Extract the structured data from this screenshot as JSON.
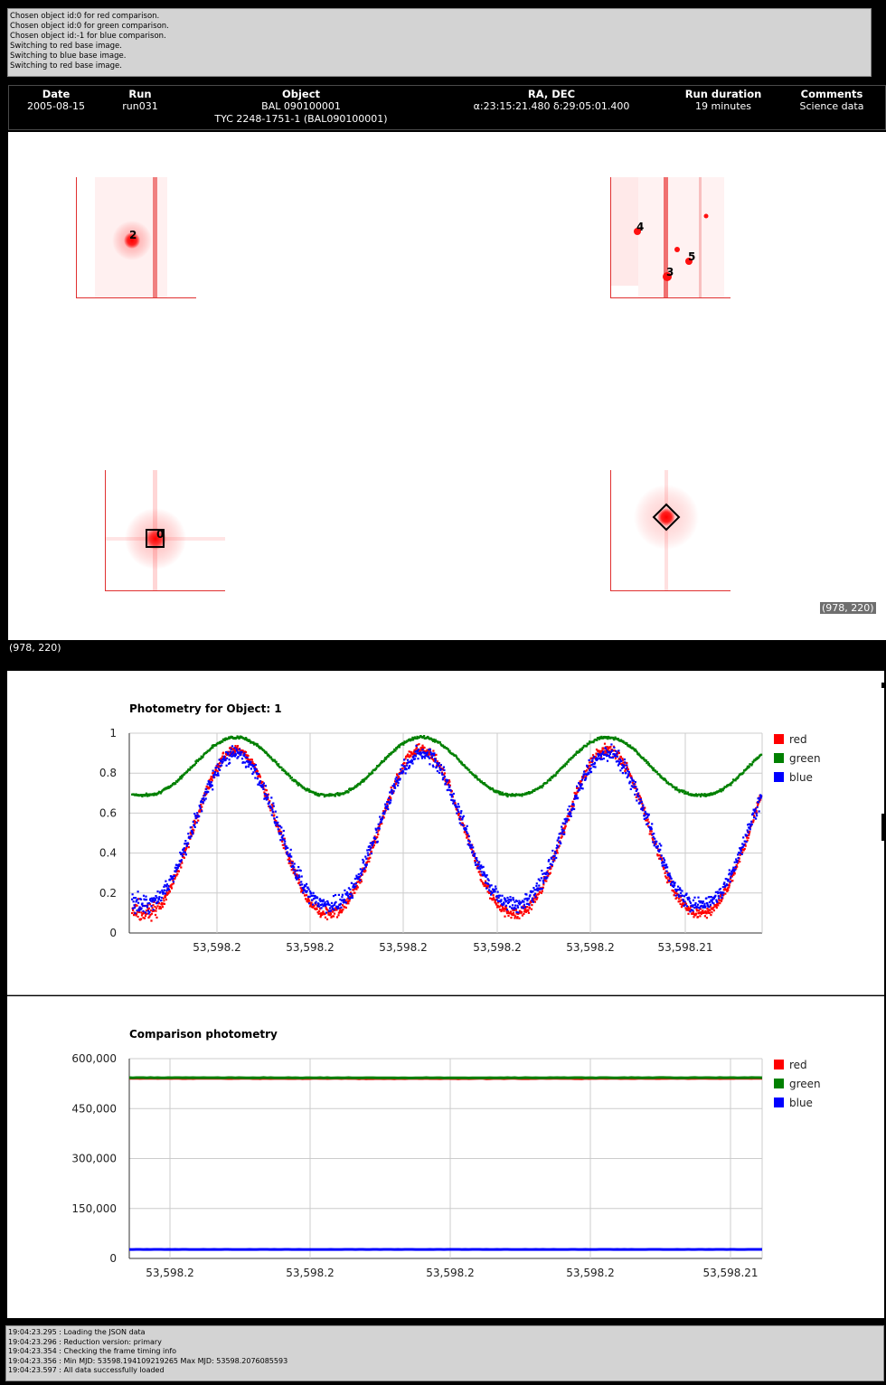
{
  "top_log": [
    "Chosen object id:0 for red comparison.",
    "Chosen object id:0 for green comparison.",
    "Chosen object id:-1 for blue comparison.",
    "Switching to red base image.",
    "Switching to blue base image.",
    "Switching to red base image."
  ],
  "run_info": {
    "date_label": "Date",
    "date_value": "2005-08-15",
    "run_label": "Run",
    "run_value": "run031",
    "object_label": "Object",
    "object_value_1": "BAL 090100001",
    "object_value_2": "TYC 2248-1751-1 (BAL090100001)",
    "radec_label": "RA, DEC",
    "radec_value": "α:23:15:21.480 δ:29:05:01.400",
    "duration_label": "Run duration",
    "duration_value": "19 minutes",
    "comments_label": "Comments",
    "comments_value": "Science data"
  },
  "image_panel": {
    "star_labels": [
      "2",
      "4",
      "5",
      "3",
      "0"
    ],
    "cursor_coords": "(978, 220)"
  },
  "below_coords": "(978, 220)",
  "colors": {
    "red": "#ff0000",
    "green": "#008000",
    "blue": "#0000ff",
    "grid": "#cccccc"
  },
  "chart_data": [
    {
      "type": "scatter",
      "title": "Photometry for Object: 1",
      "xlabel": "",
      "ylabel": "",
      "x_range": [
        53598.1941,
        53598.2077
      ],
      "x_tick_labels": [
        "53,598.2",
        "53,598.2",
        "53,598.2",
        "53,598.2",
        "53,598.2",
        "53,598.21"
      ],
      "ylim": [
        0,
        1
      ],
      "y_tick_labels": [
        "0",
        "0.2",
        "0.4",
        "0.6",
        "0.8",
        "1"
      ],
      "grid": true,
      "legend_position": "right",
      "period_fraction": 0.295,
      "series": [
        {
          "name": "red",
          "color": "#ff0000",
          "min": 0.1,
          "max": 0.92,
          "peaks_at_fraction": [
            0.165,
            0.475,
            0.79
          ],
          "noise": 0.04
        },
        {
          "name": "green",
          "color": "#008000",
          "min": 0.69,
          "max": 0.98,
          "peaks_at_fraction": [
            0.165,
            0.475,
            0.79
          ],
          "noise": 0.01
        },
        {
          "name": "blue",
          "color": "#0000ff",
          "min": 0.14,
          "max": 0.9,
          "peaks_at_fraction": [
            0.165,
            0.475,
            0.79
          ],
          "noise": 0.06
        }
      ]
    },
    {
      "type": "line",
      "title": "Comparison photometry",
      "xlabel": "",
      "ylabel": "",
      "x_range": [
        53598.1941,
        53598.2077
      ],
      "x_tick_labels": [
        "53,598.2",
        "53,598.2",
        "53,598.2",
        "53,598.2",
        "53,598.21"
      ],
      "ylim": [
        0,
        600000
      ],
      "y_tick_labels": [
        "0",
        "150,000",
        "300,000",
        "450,000",
        "600,000"
      ],
      "grid": true,
      "legend_position": "right",
      "series": [
        {
          "name": "red",
          "color": "#ff0000",
          "value": 541000
        },
        {
          "name": "green",
          "color": "#008000",
          "value": 543000
        },
        {
          "name": "blue",
          "color": "#0000ff",
          "value": 27000
        }
      ]
    }
  ],
  "bottom_log": [
    "19:04:23.295 : Loading the JSON data",
    "19:04:23.296 : Reduction version: primary",
    "19:04:23.354 : Checking the frame timing info",
    "19:04:23.356 : Min MJD: 53598.194109219265 Max MJD: 53598.2076085593",
    "19:04:23.597 : All data successfully loaded"
  ]
}
